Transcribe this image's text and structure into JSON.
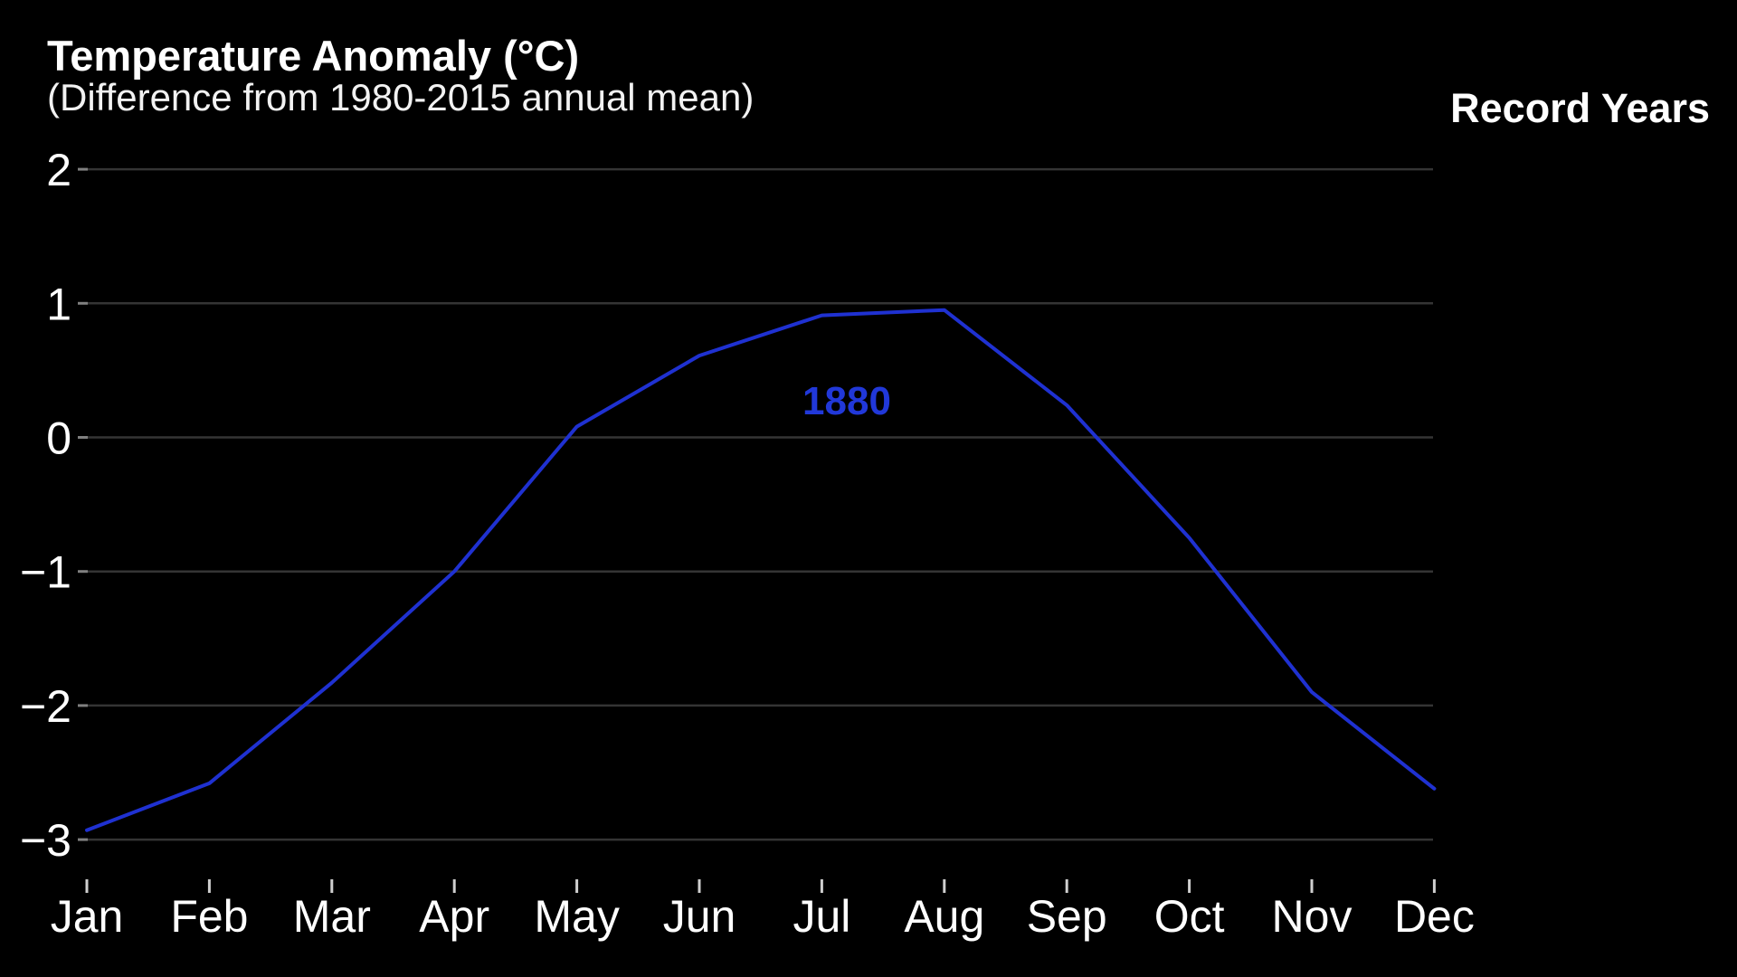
{
  "header": {
    "title": "Temperature Anomaly (°C)",
    "subtitle": "(Difference from 1980-2015 annual mean)",
    "record_years_label": "Record Years"
  },
  "chart_data": {
    "type": "line",
    "title": "Temperature Anomaly (°C)",
    "subtitle": "(Difference from 1980-2015 annual mean)",
    "legend_label": "Record Years",
    "categories": [
      "Jan",
      "Feb",
      "Mar",
      "Apr",
      "May",
      "Jun",
      "Jul",
      "Aug",
      "Sep",
      "Oct",
      "Nov",
      "Dec"
    ],
    "series": [
      {
        "name": "1880",
        "color": "#1f31d1",
        "values": [
          -2.93,
          -2.58,
          -1.83,
          -1.0,
          0.08,
          0.61,
          0.91,
          0.95,
          0.24,
          -0.75,
          -1.9,
          -2.62
        ]
      }
    ],
    "annotation": {
      "text": "1880",
      "color": "#2138d9"
    },
    "y_ticks": [
      2,
      1,
      0,
      -1,
      -2,
      -3
    ],
    "y_tick_labels": [
      "2",
      "1",
      "0",
      "−1",
      "−2",
      "−3"
    ],
    "ylim": [
      -3.4,
      2.3
    ],
    "xlabel": "",
    "ylabel": "Temperature Anomaly (°C)",
    "grid": true,
    "legend_position": "top-right"
  },
  "colors": {
    "background": "#000000",
    "text": "#ffffff",
    "gridline": "#343434",
    "y_tick": "#808080",
    "x_tick": "#cfcfcf",
    "axis_label": "#ffffff"
  }
}
